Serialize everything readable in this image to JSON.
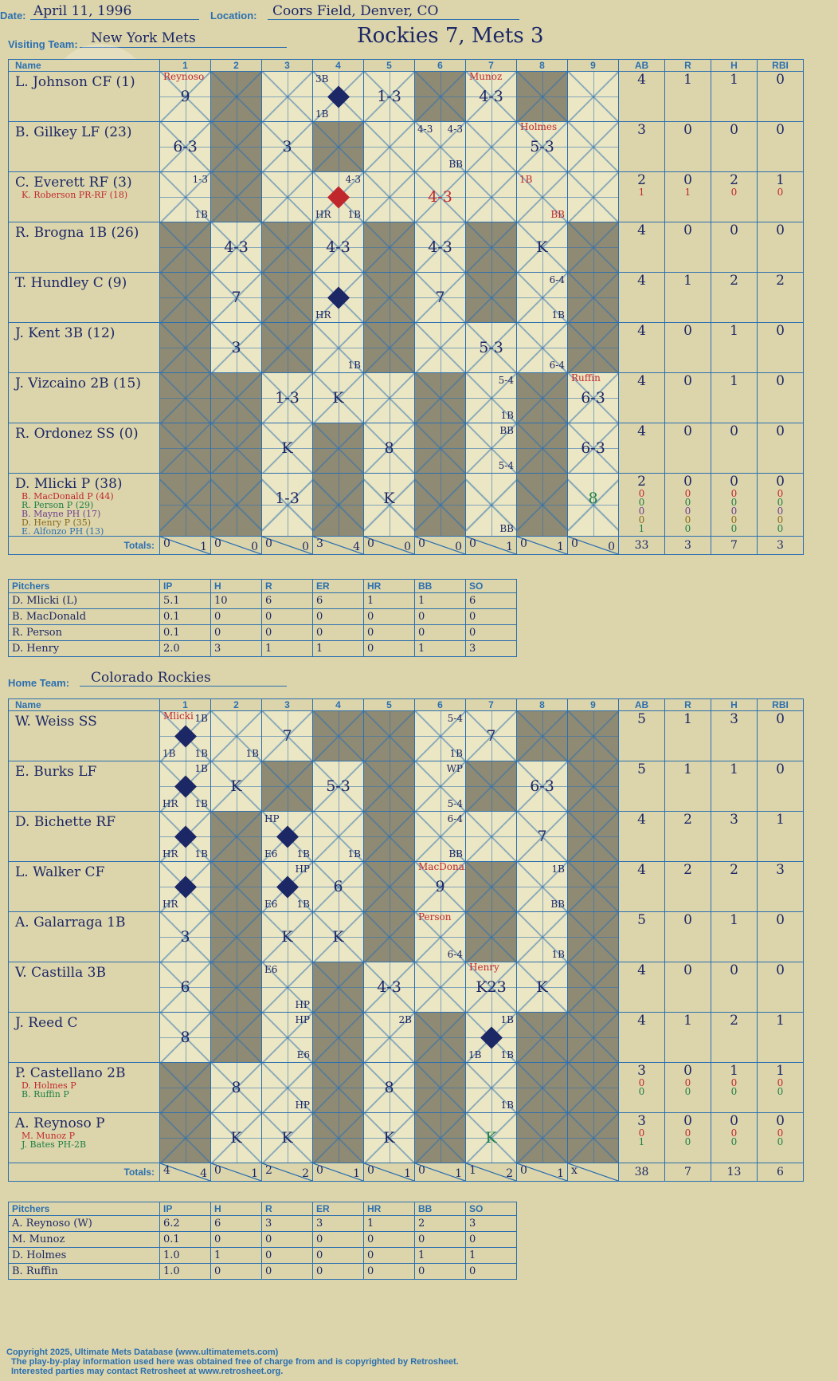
{
  "header": {
    "date_label": "Date:",
    "date": "April 11, 1996",
    "location_label": "Location:",
    "location": "Coors Field, Denver, CO",
    "visiting_label": "Visiting Team:",
    "visiting_team": "New York Mets",
    "home_label": "Home Team:",
    "home_team": "Colorado Rockies",
    "title": "Rockies 7, Mets 3"
  },
  "columns": {
    "name": "Name",
    "innings": [
      "1",
      "2",
      "3",
      "4",
      "5",
      "6",
      "7",
      "8",
      "9"
    ],
    "stats": [
      "AB",
      "R",
      "H",
      "RBI"
    ]
  },
  "watermark": [
    "Ultimate",
    "Mets",
    "Database",
    "ultimatemets.com"
  ],
  "visitors": {
    "batters": [
      {
        "name": "L. Johnson CF (1)",
        "subs": [],
        "ab": "4",
        "r": "1",
        "h": "1",
        "rbi": "0",
        "extra": []
      },
      {
        "name": "B. Gilkey LF (23)",
        "subs": [],
        "ab": "3",
        "r": "0",
        "h": "0",
        "rbi": "0",
        "extra": []
      },
      {
        "name": "C. Everett RF (3)",
        "subs": [
          "K. Roberson PR-RF (18)"
        ],
        "ab": "2",
        "r": "0",
        "h": "2",
        "rbi": "1",
        "extra": [
          [
            "1",
            "1",
            "0",
            "0"
          ]
        ]
      },
      {
        "name": "R. Brogna 1B (26)",
        "subs": [],
        "ab": "4",
        "r": "0",
        "h": "0",
        "rbi": "0",
        "extra": []
      },
      {
        "name": "T. Hundley C (9)",
        "subs": [],
        "ab": "4",
        "r": "1",
        "h": "2",
        "rbi": "2",
        "extra": []
      },
      {
        "name": "J. Kent 3B (12)",
        "subs": [],
        "ab": "4",
        "r": "0",
        "h": "1",
        "rbi": "0",
        "extra": []
      },
      {
        "name": "J. Vizcaino 2B (15)",
        "subs": [],
        "ab": "4",
        "r": "0",
        "h": "1",
        "rbi": "0",
        "extra": []
      },
      {
        "name": "R. Ordonez SS (0)",
        "subs": [],
        "ab": "4",
        "r": "0",
        "h": "0",
        "rbi": "0",
        "extra": []
      },
      {
        "name": "D. Mlicki P (38)",
        "subs": [
          "B. MacDonald P (44)",
          "R. Person P (29)",
          "B. Mayne PH (17)",
          "D. Henry P (35)",
          "E. Alfonzo PH (13)"
        ],
        "ab": "2",
        "r": "0",
        "h": "0",
        "rbi": "0",
        "extra": [
          [
            "0",
            "0",
            "0",
            "0"
          ],
          [
            "0",
            "0",
            "0",
            "0"
          ],
          [
            "0",
            "0",
            "0",
            "0"
          ],
          [
            "0",
            "0",
            "0",
            "0"
          ],
          [
            "1",
            "0",
            "0",
            "0"
          ]
        ]
      }
    ],
    "plays": [
      [
        {
          "t": "9",
          "sub": "Reynoso"
        },
        {},
        {},
        {
          "t": "",
          "tl": "3B",
          "bl": "1B",
          "dia": "blue"
        },
        {
          "t": "1-3"
        },
        {},
        {
          "t": "4-3",
          "sub": "Munoz"
        },
        {},
        {}
      ],
      [
        {
          "t": "6-3"
        },
        {},
        {
          "t": "3"
        },
        {},
        {},
        {
          "t": "",
          "tl": "4-3",
          "tr": "4-3",
          "br": "BB"
        },
        {},
        {
          "t": "5-3",
          "sub": "Holmes"
        },
        {}
      ],
      [
        {
          "t": "",
          "tr": "1-3",
          "br": "1B"
        },
        {},
        {},
        {
          "t": "",
          "tr": "4-3",
          "bl": "HR",
          "br": "1B",
          "dia": "red"
        },
        {},
        {
          "t": "4-3",
          "red": true
        },
        {},
        {
          "t": "",
          "tl": "1B",
          "br": "BB",
          "redtxt": true
        },
        {}
      ],
      [
        {},
        {
          "t": "4-3"
        },
        {},
        {
          "t": "4-3"
        },
        {},
        {
          "t": "4-3"
        },
        {},
        {
          "t": "K"
        },
        {}
      ],
      [
        {},
        {
          "t": "7"
        },
        {},
        {
          "t": "",
          "bl": "HR",
          "dia": "blue"
        },
        {},
        {
          "t": "7"
        },
        {},
        {
          "t": "",
          "tr": "6-4",
          "br": "1B"
        },
        {}
      ],
      [
        {},
        {
          "t": "3"
        },
        {},
        {
          "t": "",
          "br": "1B"
        },
        {},
        {},
        {
          "t": "5-3"
        },
        {
          "t": "",
          "br": "6-4"
        },
        {}
      ],
      [
        {},
        {},
        {
          "t": "1-3"
        },
        {
          "t": "K"
        },
        {},
        {},
        {
          "t": "",
          "tr": "5-4",
          "br": "1B"
        },
        {},
        {
          "t": "6-3",
          "sub": "Ruffin"
        }
      ],
      [
        {},
        {},
        {
          "t": "K"
        },
        {},
        {
          "t": "8"
        },
        {},
        {
          "t": "",
          "tr": "BB",
          "br": "5-4"
        },
        {},
        {
          "t": "6-3"
        }
      ],
      [
        {},
        {},
        {
          "t": "1-3"
        },
        {},
        {
          "t": "K"
        },
        {},
        {
          "t": "",
          "br": "BB"
        },
        {},
        {
          "t": "8",
          "green": true
        }
      ]
    ],
    "totals_label": "Totals:",
    "totals_r_label": "R",
    "totals_h_label": "H",
    "inning_totals": [
      [
        "0",
        "1"
      ],
      [
        "0",
        "0"
      ],
      [
        "0",
        "0"
      ],
      [
        "3",
        "4"
      ],
      [
        "0",
        "0"
      ],
      [
        "0",
        "0"
      ],
      [
        "0",
        "1"
      ],
      [
        "0",
        "1"
      ],
      [
        "0",
        "0"
      ]
    ],
    "totals": [
      "33",
      "3",
      "7",
      "3"
    ]
  },
  "visitors_pitching": {
    "headers": [
      "Pitchers",
      "IP",
      "H",
      "R",
      "ER",
      "HR",
      "BB",
      "SO"
    ],
    "rows": [
      [
        "D. Mlicki (L)",
        "5.1",
        "10",
        "6",
        "6",
        "1",
        "1",
        "6"
      ],
      [
        "B. MacDonald",
        "0.1",
        "0",
        "0",
        "0",
        "0",
        "0",
        "0"
      ],
      [
        "R. Person",
        "0.1",
        "0",
        "0",
        "0",
        "0",
        "0",
        "0"
      ],
      [
        "D. Henry",
        "2.0",
        "3",
        "1",
        "1",
        "0",
        "1",
        "3"
      ]
    ]
  },
  "home": {
    "batters": [
      {
        "name": "W. Weiss SS",
        "subs": [],
        "ab": "5",
        "r": "1",
        "h": "3",
        "rbi": "0",
        "extra": []
      },
      {
        "name": "E. Burks LF",
        "subs": [],
        "ab": "5",
        "r": "1",
        "h": "1",
        "rbi": "0",
        "extra": []
      },
      {
        "name": "D. Bichette RF",
        "subs": [],
        "ab": "4",
        "r": "2",
        "h": "3",
        "rbi": "1",
        "extra": []
      },
      {
        "name": "L. Walker CF",
        "subs": [],
        "ab": "4",
        "r": "2",
        "h": "2",
        "rbi": "3",
        "extra": []
      },
      {
        "name": "A. Galarraga 1B",
        "subs": [],
        "ab": "5",
        "r": "0",
        "h": "1",
        "rbi": "0",
        "extra": []
      },
      {
        "name": "V. Castilla 3B",
        "subs": [],
        "ab": "4",
        "r": "0",
        "h": "0",
        "rbi": "0",
        "extra": []
      },
      {
        "name": "J. Reed C",
        "subs": [],
        "ab": "4",
        "r": "1",
        "h": "2",
        "rbi": "1",
        "extra": []
      },
      {
        "name": "P. Castellano 2B",
        "subs": [
          "D. Holmes P",
          "B. Ruffin P"
        ],
        "ab": "3",
        "r": "0",
        "h": "1",
        "rbi": "1",
        "extra": [
          [
            "0",
            "0",
            "0",
            "0"
          ],
          [
            "0",
            "0",
            "0",
            "0"
          ]
        ]
      },
      {
        "name": "A. Reynoso P",
        "subs": [
          "M. Munoz P",
          "J. Bates PH-2B"
        ],
        "ab": "3",
        "r": "0",
        "h": "0",
        "rbi": "0",
        "extra": [
          [
            "0",
            "0",
            "0",
            "0"
          ],
          [
            "1",
            "0",
            "0",
            "0"
          ]
        ]
      }
    ],
    "plays": [
      [
        {
          "t": "",
          "tr": "1B",
          "bl": "1B",
          "br": "1B",
          "dia": "blue",
          "sub": "Mlicki"
        },
        {
          "t": "",
          "br": "1B"
        },
        {
          "t": "7"
        },
        {},
        {},
        {
          "t": "",
          "tr": "5-4",
          "br": "1B"
        },
        {
          "t": "7"
        },
        {},
        {}
      ],
      [
        {
          "t": "",
          "tr": "1B",
          "bl": "HR",
          "br": "1B",
          "dia": "blue"
        },
        {
          "t": "K"
        },
        {},
        {
          "t": "5-3"
        },
        {},
        {
          "t": "",
          "tr": "WP",
          "br": "5-4"
        },
        {},
        {
          "t": "6-3"
        },
        {}
      ],
      [
        {
          "t": "",
          "bl": "HR",
          "br": "1B",
          "dia": "blue"
        },
        {},
        {
          "t": "",
          "tl": "HP",
          "bl": "E6",
          "br": "1B",
          "dia": "blue"
        },
        {
          "t": "",
          "br": "1B"
        },
        {},
        {
          "t": "",
          "tr": "6-4",
          "br": "BB"
        },
        {},
        {
          "t": "7"
        },
        {}
      ],
      [
        {
          "t": "",
          "bl": "HR",
          "dia": "blue"
        },
        {},
        {
          "t": "",
          "tr": "HP",
          "bl": "E6",
          "br": "1B",
          "dia": "blue"
        },
        {
          "t": "6"
        },
        {},
        {
          "t": "9",
          "sub": "MacDonald"
        },
        {},
        {
          "t": "",
          "tr": "1B",
          "br": "BB"
        },
        {}
      ],
      [
        {
          "t": "3"
        },
        {},
        {
          "t": "K"
        },
        {
          "t": "K"
        },
        {},
        {
          "t": "",
          "br": "6-4",
          "sub": "Person"
        },
        {},
        {
          "t": "",
          "br": "1B"
        },
        {}
      ],
      [
        {
          "t": "6"
        },
        {},
        {
          "t": "",
          "tl": "E6",
          "br": "HP"
        },
        {},
        {
          "t": "4-3"
        },
        {},
        {
          "t": "K23",
          "sub": "Henry"
        },
        {
          "t": "K"
        },
        {}
      ],
      [
        {
          "t": "8"
        },
        {},
        {
          "t": "",
          "tr": "HP",
          "br": "E6"
        },
        {},
        {
          "t": "",
          "tr": "2B"
        },
        {},
        {
          "t": "",
          "tr": "1B",
          "bl": "1B",
          "br": "1B",
          "dia": "blue"
        },
        {},
        {}
      ],
      [
        {},
        {
          "t": "8"
        },
        {
          "t": "",
          "br": "HP"
        },
        {},
        {
          "t": "8"
        },
        {},
        {
          "t": "",
          "br": "1B"
        },
        {},
        {}
      ],
      [
        {},
        {
          "t": "K"
        },
        {
          "t": "K"
        },
        {},
        {
          "t": "K"
        },
        {},
        {
          "t": "K",
          "green": true
        },
        {},
        {}
      ]
    ],
    "totals_label": "Totals:",
    "totals_r_label": "R",
    "totals_h_label": "H",
    "inning_totals": [
      [
        "4",
        "4"
      ],
      [
        "0",
        "1"
      ],
      [
        "2",
        "2"
      ],
      [
        "0",
        "1"
      ],
      [
        "0",
        "1"
      ],
      [
        "0",
        "1"
      ],
      [
        "1",
        "2"
      ],
      [
        "0",
        "1"
      ],
      [
        "x",
        ""
      ]
    ],
    "totals": [
      "38",
      "7",
      "13",
      "6"
    ]
  },
  "home_pitching": {
    "headers": [
      "Pitchers",
      "IP",
      "H",
      "R",
      "ER",
      "HR",
      "BB",
      "SO"
    ],
    "rows": [
      [
        "A. Reynoso (W)",
        "6.2",
        "6",
        "3",
        "3",
        "1",
        "2",
        "3"
      ],
      [
        "M. Munoz",
        "0.1",
        "0",
        "0",
        "0",
        "0",
        "0",
        "0"
      ],
      [
        "D. Holmes",
        "1.0",
        "1",
        "0",
        "0",
        "0",
        "1",
        "1"
      ],
      [
        "B. Ruffin",
        "1.0",
        "0",
        "0",
        "0",
        "0",
        "0",
        "0"
      ]
    ]
  },
  "footer": [
    "Copyright 2025, Ultimate Mets Database (www.ultimatemets.com)",
    "The play-by-play information used here was obtained free of charge from and is copyrighted by Retrosheet.",
    "Interested parties may contact Retrosheet at www.retrosheet.org."
  ],
  "colors": {
    "background": "#dcd5ab",
    "grid_line": "#2b6fb0",
    "ink": "#1c2766",
    "shade": "#8f8a74",
    "red": "#c0272d",
    "green": "#1e7f45"
  }
}
